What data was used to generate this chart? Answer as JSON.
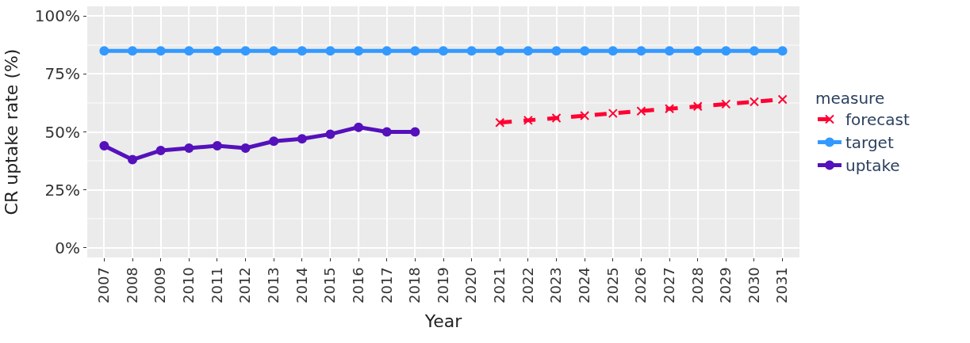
{
  "chart_data": {
    "type": "line",
    "xlabel": "Year",
    "ylabel": "CR uptake rate (%)",
    "legend_title": "measure",
    "legend": "right",
    "grid": true,
    "categories": [
      "2007",
      "2008",
      "2009",
      "2010",
      "2011",
      "2012",
      "2013",
      "2014",
      "2015",
      "2016",
      "2017",
      "2018",
      "2019",
      "2020",
      "2021",
      "2022",
      "2023",
      "2024",
      "2025",
      "2026",
      "2027",
      "2028",
      "2029",
      "2030",
      "2031"
    ],
    "ylim": [
      -4.2,
      104.2
    ],
    "yticks": [
      {
        "value": 0,
        "label": "0%"
      },
      {
        "value": 25,
        "label": "25%"
      },
      {
        "value": 50,
        "label": "50%"
      },
      {
        "value": 75,
        "label": "75%"
      },
      {
        "value": 100,
        "label": "100%"
      }
    ],
    "series": [
      {
        "name": "forecast",
        "color": "#ff0033",
        "marker": "cross",
        "line_style": "dashed",
        "values": [
          null,
          null,
          null,
          null,
          null,
          null,
          null,
          null,
          null,
          null,
          null,
          null,
          null,
          null,
          54,
          55,
          56,
          57,
          58,
          59,
          60,
          61,
          62,
          63,
          64
        ]
      },
      {
        "name": "target",
        "color": "#3399ff",
        "marker": "circle",
        "line_style": "solid",
        "values": [
          85,
          85,
          85,
          85,
          85,
          85,
          85,
          85,
          85,
          85,
          85,
          85,
          85,
          85,
          85,
          85,
          85,
          85,
          85,
          85,
          85,
          85,
          85,
          85,
          85
        ]
      },
      {
        "name": "uptake",
        "color": "#5511bb",
        "marker": "circle",
        "line_style": "solid",
        "values": [
          44,
          38,
          42,
          43,
          44,
          43,
          46,
          47,
          49,
          52,
          50,
          50,
          null,
          null,
          null,
          null,
          null,
          null,
          null,
          null,
          null,
          null,
          null,
          null,
          null
        ]
      }
    ]
  }
}
